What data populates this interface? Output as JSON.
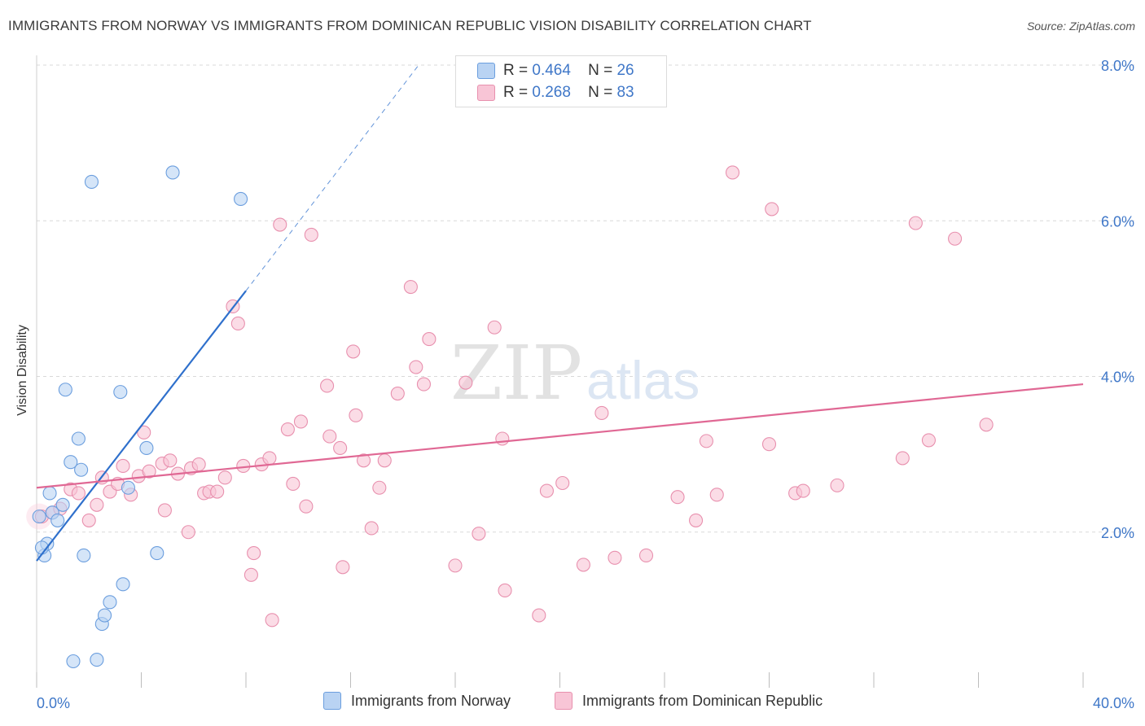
{
  "title": "IMMIGRANTS FROM NORWAY VS IMMIGRANTS FROM DOMINICAN REPUBLIC VISION DISABILITY CORRELATION CHART",
  "source": "Source: ZipAtlas.com",
  "watermark": {
    "zip": "ZIP",
    "atlas": "atlas"
  },
  "colors": {
    "norway_fill": "#b9d3f3",
    "norway_stroke": "#6b9ede",
    "norway_line": "#2f70cc",
    "dr_fill": "#f8c5d6",
    "dr_stroke": "#e890ae",
    "dr_line": "#e06894",
    "axis_text": "#3f77c8",
    "grid": "#d9d9d9"
  },
  "legend_top": [
    {
      "r_label": "R =",
      "r_value": "0.464",
      "n_label": "N =",
      "n_value": "26"
    },
    {
      "r_label": "R =",
      "r_value": "0.268",
      "n_label": "N =",
      "n_value": "83"
    }
  ],
  "legend_bottom": [
    "Immigrants from Norway",
    "Immigrants from Dominican Republic"
  ],
  "chart_data": {
    "type": "scatter",
    "title": "IMMIGRANTS FROM NORWAY VS IMMIGRANTS FROM DOMINICAN REPUBLIC VISION DISABILITY CORRELATION CHART",
    "xlabel": "",
    "ylabel": "Vision Disability",
    "xlim": [
      0,
      40
    ],
    "ylim": [
      0,
      8
    ],
    "x_tick_labels": [
      "0.0%",
      "40.0%"
    ],
    "y_ticks": [
      2,
      4,
      6,
      8
    ],
    "y_tick_labels": [
      "2.0%",
      "4.0%",
      "6.0%",
      "8.0%"
    ],
    "grid": true,
    "legend_position": "top-center",
    "series": [
      {
        "name": "Immigrants from Norway",
        "R": 0.464,
        "N": 26,
        "trend": {
          "x0": 0.0,
          "y0": 1.63,
          "x1": 8.0,
          "y1": 5.1,
          "dash_to_x": 14.6,
          "dash_to_y": 8.0
        },
        "points": [
          [
            0.1,
            2.2
          ],
          [
            0.3,
            1.7
          ],
          [
            0.4,
            1.85
          ],
          [
            0.5,
            2.5
          ],
          [
            0.6,
            2.25
          ],
          [
            0.8,
            2.15
          ],
          [
            1.0,
            2.35
          ],
          [
            1.1,
            3.83
          ],
          [
            1.3,
            2.9
          ],
          [
            1.6,
            3.2
          ],
          [
            1.7,
            2.8
          ],
          [
            1.8,
            1.7
          ],
          [
            1.4,
            0.34
          ],
          [
            2.3,
            0.36
          ],
          [
            2.5,
            0.82
          ],
          [
            2.6,
            0.93
          ],
          [
            2.8,
            1.1
          ],
          [
            3.2,
            3.8
          ],
          [
            3.3,
            1.33
          ],
          [
            3.5,
            2.57
          ],
          [
            4.2,
            3.08
          ],
          [
            4.6,
            1.73
          ],
          [
            2.1,
            6.5
          ],
          [
            5.2,
            6.62
          ],
          [
            7.8,
            6.28
          ],
          [
            0.2,
            1.8
          ]
        ]
      },
      {
        "name": "Immigrants from Dominican Republic",
        "R": 0.268,
        "N": 83,
        "trend": {
          "x0": 0.0,
          "y0": 2.57,
          "x1": 40.0,
          "y1": 3.9
        },
        "points": [
          [
            0.2,
            2.2
          ],
          [
            0.6,
            2.25
          ],
          [
            0.9,
            2.3
          ],
          [
            1.3,
            2.55
          ],
          [
            1.6,
            2.5
          ],
          [
            2.0,
            2.15
          ],
          [
            2.3,
            2.35
          ],
          [
            2.5,
            2.7
          ],
          [
            2.8,
            2.52
          ],
          [
            3.1,
            2.62
          ],
          [
            3.3,
            2.85
          ],
          [
            3.6,
            2.48
          ],
          [
            3.9,
            2.72
          ],
          [
            4.1,
            3.28
          ],
          [
            4.3,
            2.78
          ],
          [
            4.8,
            2.88
          ],
          [
            4.9,
            2.28
          ],
          [
            5.1,
            2.92
          ],
          [
            5.4,
            2.75
          ],
          [
            5.8,
            2.0
          ],
          [
            5.9,
            2.82
          ],
          [
            6.2,
            2.87
          ],
          [
            6.4,
            2.5
          ],
          [
            6.6,
            2.52
          ],
          [
            6.9,
            2.52
          ],
          [
            7.2,
            2.7
          ],
          [
            7.5,
            4.9
          ],
          [
            7.7,
            4.68
          ],
          [
            8.2,
            1.45
          ],
          [
            8.3,
            1.73
          ],
          [
            8.6,
            2.87
          ],
          [
            8.9,
            2.95
          ],
          [
            9.0,
            0.87
          ],
          [
            9.3,
            5.95
          ],
          [
            9.6,
            3.32
          ],
          [
            9.8,
            2.62
          ],
          [
            10.1,
            3.42
          ],
          [
            10.3,
            2.33
          ],
          [
            10.5,
            5.82
          ],
          [
            11.1,
            3.88
          ],
          [
            11.2,
            3.23
          ],
          [
            11.6,
            3.08
          ],
          [
            11.7,
            1.55
          ],
          [
            12.1,
            4.32
          ],
          [
            12.2,
            3.5
          ],
          [
            12.5,
            2.92
          ],
          [
            12.8,
            2.05
          ],
          [
            13.1,
            2.57
          ],
          [
            13.3,
            2.92
          ],
          [
            13.8,
            3.78
          ],
          [
            14.3,
            5.15
          ],
          [
            14.5,
            4.12
          ],
          [
            14.8,
            3.9
          ],
          [
            15.0,
            4.48
          ],
          [
            16.0,
            1.57
          ],
          [
            16.4,
            3.92
          ],
          [
            16.9,
            1.98
          ],
          [
            17.5,
            4.63
          ],
          [
            17.8,
            3.2
          ],
          [
            17.9,
            1.25
          ],
          [
            19.2,
            0.93
          ],
          [
            19.5,
            2.53
          ],
          [
            20.1,
            2.63
          ],
          [
            20.9,
            1.58
          ],
          [
            21.6,
            3.53
          ],
          [
            22.1,
            1.67
          ],
          [
            23.3,
            1.7
          ],
          [
            24.5,
            2.45
          ],
          [
            25.2,
            2.15
          ],
          [
            25.6,
            3.17
          ],
          [
            26.0,
            2.48
          ],
          [
            26.6,
            6.62
          ],
          [
            28.1,
            6.15
          ],
          [
            28.0,
            3.13
          ],
          [
            29.0,
            2.5
          ],
          [
            29.3,
            2.53
          ],
          [
            30.6,
            2.6
          ],
          [
            33.1,
            2.95
          ],
          [
            33.6,
            5.97
          ],
          [
            34.1,
            3.18
          ],
          [
            35.1,
            5.77
          ],
          [
            36.3,
            3.38
          ],
          [
            7.9,
            2.85
          ]
        ]
      }
    ]
  }
}
